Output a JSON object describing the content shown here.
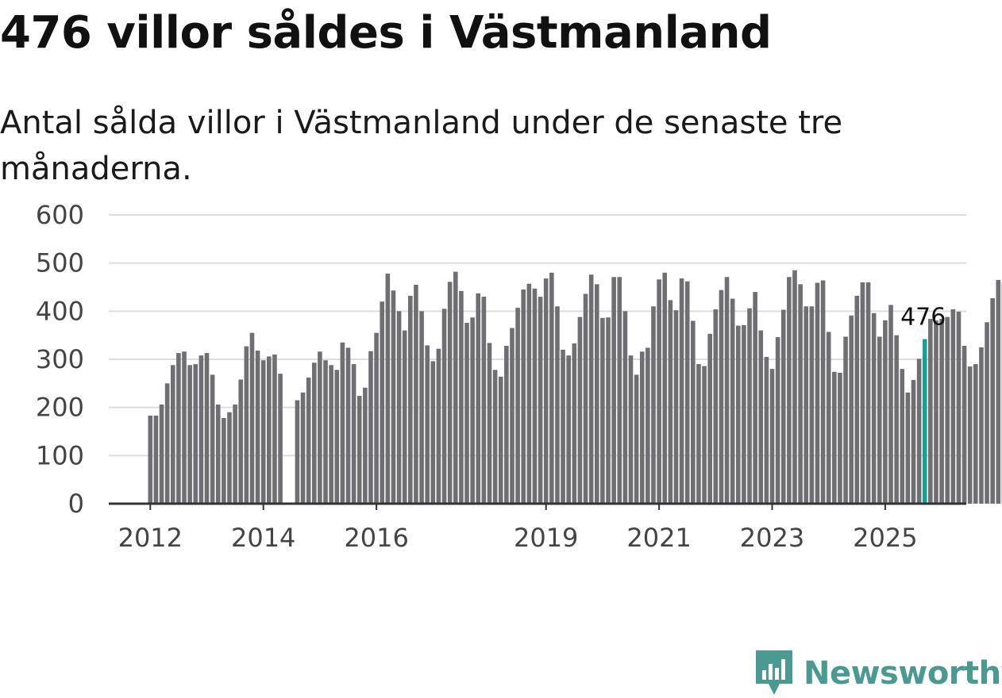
{
  "header": {
    "title": "476 villor såldes i Västmanland",
    "subtitle": "Antal sålda villor i Västmanland under de senaste tre månaderna."
  },
  "brand": {
    "name": "Newsworthy",
    "color": "#4a9a91"
  },
  "colors": {
    "bar": "#6e6e73",
    "highlight": "#17a196",
    "grid": "#dddddd",
    "axis": "#333333"
  },
  "chart_data": {
    "type": "bar",
    "title": "476 villor såldes i Västmanland",
    "subtitle": "Antal sålda villor i Västmanland under de senaste tre månaderna.",
    "xlabel": "",
    "ylabel": "",
    "ylim": [
      0,
      600
    ],
    "yticks": [
      0,
      100,
      200,
      300,
      400,
      500,
      600
    ],
    "xticks": [
      {
        "label": "2012",
        "index": 0
      },
      {
        "label": "2014",
        "index": 20
      },
      {
        "label": "2016",
        "index": 40
      },
      {
        "label": "2019",
        "index": 70
      },
      {
        "label": "2021",
        "index": 90
      },
      {
        "label": "2023",
        "index": 110
      },
      {
        "label": "2025",
        "index": 130
      }
    ],
    "grid": true,
    "highlight": {
      "index": 137,
      "label": "476"
    },
    "values": [
      183,
      183,
      206,
      250,
      288,
      313,
      316,
      288,
      290,
      308,
      313,
      268,
      206,
      178,
      190,
      206,
      258,
      327,
      355,
      318,
      298,
      306,
      310,
      270,
      null,
      null,
      null,
      null,
      null,
      null,
      null,
      null,
      null,
      null,
      null,
      null,
      null,
      null,
      null,
      null,
      null,
      null,
      null,
      null,
      null,
      null,
      null,
      null,
      null,
      null,
      null,
      null,
      null,
      null,
      null,
      null,
      null,
      null,
      null,
      null,
      null,
      null,
      null,
      null,
      null,
      null,
      null,
      null,
      null,
      null,
      null,
      null,
      null,
      null,
      null,
      null,
      null,
      null,
      null,
      null,
      null,
      null,
      null,
      null,
      null,
      null,
      null,
      null,
      null,
      null,
      null,
      null,
      null,
      null,
      null,
      null,
      null,
      null,
      null,
      null,
      null,
      null,
      null,
      null,
      null,
      null,
      null,
      null,
      null,
      null,
      null,
      null,
      null,
      null,
      null,
      null,
      null,
      null,
      null,
      null,
      null,
      null,
      null,
      null,
      null,
      null,
      null,
      null,
      null,
      null,
      null,
      null,
      null,
      null,
      null,
      null,
      null,
      null
    ]
  }
}
